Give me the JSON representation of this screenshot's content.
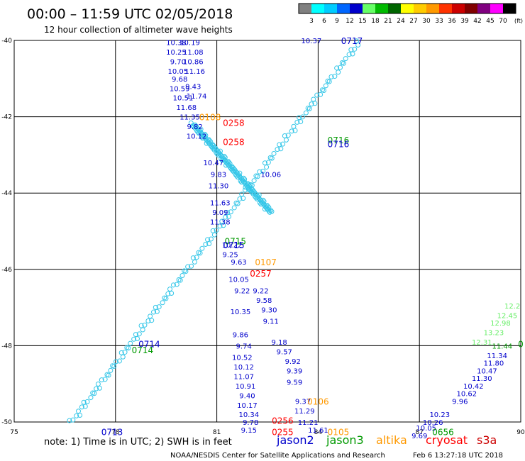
{
  "header": {
    "title": "00:00 – 11:59 UTC 02/05/2018",
    "subtitle": "12 hour collection of altimeter wave heights"
  },
  "colorbar": {
    "labels": [
      "3",
      "6",
      "9",
      "12",
      "15",
      "18",
      "21",
      "24",
      "27",
      "30",
      "33",
      "36",
      "39",
      "42",
      "45",
      "70"
    ],
    "unit": "(ft)",
    "colors": [
      "#808080",
      "#00ffff",
      "#00ccff",
      "#0066ff",
      "#0000cc",
      "#66ff66",
      "#00bb00",
      "#006600",
      "#ffff00",
      "#ffcc00",
      "#ff9900",
      "#ff3300",
      "#cc0000",
      "#800000",
      "#800080",
      "#ff00ff",
      "#000000"
    ]
  },
  "footer": {
    "note": "note:  1) Time is in UTC; 2) SWH is in feet",
    "satellites": [
      {
        "name": "jason2",
        "color": "#0000cc"
      },
      {
        "name": "jason3",
        "color": "#009900"
      },
      {
        "name": "altika",
        "color": "#ff9900"
      },
      {
        "name": "cryosat",
        "color": "#ff0000"
      },
      {
        "name": "s3a",
        "color": "#cc0000"
      }
    ],
    "credit": "NOAA/NESDIS Center for Satellite Applications and Research",
    "timestamp": "Feb  6 13:27:18 UTC 2018"
  },
  "chart_data": {
    "type": "scatter",
    "xlim": [
      75,
      90
    ],
    "ylim": [
      -50,
      -40
    ],
    "x_ticks": [
      75,
      78,
      81,
      84,
      87,
      90
    ],
    "y_ticks": [
      -40,
      -42,
      -44,
      -46,
      -48,
      -50
    ],
    "grid": true,
    "series": [
      {
        "name": "jason2",
        "color": "#0000cc",
        "points": [
          {
            "x": 83.8,
            "y": -40.0,
            "label": "10.37"
          },
          {
            "x": 79.8,
            "y": -40.05,
            "label": "10.38"
          },
          {
            "x": 80.2,
            "y": -40.05,
            "label": "10.19"
          },
          {
            "x": 79.8,
            "y": -40.3,
            "label": "10.25"
          },
          {
            "x": 80.3,
            "y": -40.3,
            "label": "11.08"
          },
          {
            "x": 79.85,
            "y": -40.55,
            "label": "9.70"
          },
          {
            "x": 80.3,
            "y": -40.55,
            "label": "10.86"
          },
          {
            "x": 79.85,
            "y": -40.8,
            "label": "10.05"
          },
          {
            "x": 80.35,
            "y": -40.8,
            "label": "11.16"
          },
          {
            "x": 79.9,
            "y": -41.0,
            "label": "9.68"
          },
          {
            "x": 80.3,
            "y": -41.2,
            "label": "9.43"
          },
          {
            "x": 79.9,
            "y": -41.25,
            "label": "10.59"
          },
          {
            "x": 80.4,
            "y": -41.45,
            "label": "11.74"
          },
          {
            "x": 80.0,
            "y": -41.5,
            "label": "10.51"
          },
          {
            "x": 80.1,
            "y": -41.75,
            "label": "11.68"
          },
          {
            "x": 80.2,
            "y": -42.0,
            "label": "11.35"
          },
          {
            "x": 80.35,
            "y": -42.25,
            "label": "9.82"
          },
          {
            "x": 80.4,
            "y": -42.5,
            "label": "10.12"
          },
          {
            "x": 80.9,
            "y": -43.2,
            "label": "10.47"
          },
          {
            "x": 81.05,
            "y": -43.5,
            "label": "9.83"
          },
          {
            "x": 82.6,
            "y": -43.5,
            "label": "10.06"
          },
          {
            "x": 81.05,
            "y": -43.8,
            "label": "11.30"
          },
          {
            "x": 81.1,
            "y": -44.25,
            "label": "11.63"
          },
          {
            "x": 81.1,
            "y": -44.5,
            "label": "9.09"
          },
          {
            "x": 81.1,
            "y": -44.75,
            "label": "11.38"
          },
          {
            "x": 81.45,
            "y": -45.35,
            "label": "10.22"
          },
          {
            "x": 81.4,
            "y": -45.6,
            "label": "9.25"
          },
          {
            "x": 81.65,
            "y": -45.8,
            "label": "9.63"
          },
          {
            "x": 81.65,
            "y": -46.25,
            "label": "10.05"
          },
          {
            "x": 81.75,
            "y": -46.55,
            "label": "9.22"
          },
          {
            "x": 82.3,
            "y": -46.55,
            "label": "9.22"
          },
          {
            "x": 82.4,
            "y": -46.8,
            "label": "9.58"
          },
          {
            "x": 82.55,
            "y": -47.05,
            "label": "9.30"
          },
          {
            "x": 81.7,
            "y": -47.1,
            "label": "10.35"
          },
          {
            "x": 82.6,
            "y": -47.35,
            "label": "9.11"
          },
          {
            "x": 81.7,
            "y": -47.7,
            "label": "9.86"
          },
          {
            "x": 82.85,
            "y": -47.9,
            "label": "9.18"
          },
          {
            "x": 81.8,
            "y": -48.0,
            "label": "9.74"
          },
          {
            "x": 83.0,
            "y": -48.15,
            "label": "9.57"
          },
          {
            "x": 81.75,
            "y": -48.3,
            "label": "10.52"
          },
          {
            "x": 83.25,
            "y": -48.4,
            "label": "9.92"
          },
          {
            "x": 81.8,
            "y": -48.55,
            "label": "10.12"
          },
          {
            "x": 83.3,
            "y": -48.65,
            "label": "9.39"
          },
          {
            "x": 81.8,
            "y": -48.8,
            "label": "11.07"
          },
          {
            "x": 83.3,
            "y": -48.95,
            "label": "9.59"
          },
          {
            "x": 81.85,
            "y": -49.05,
            "label": "10.91"
          },
          {
            "x": 81.9,
            "y": -49.3,
            "label": "9.40"
          },
          {
            "x": 83.55,
            "y": -49.45,
            "label": "9.37"
          },
          {
            "x": 81.9,
            "y": -49.55,
            "label": "10.17"
          },
          {
            "x": 83.6,
            "y": -49.7,
            "label": "11.29"
          },
          {
            "x": 81.95,
            "y": -49.8,
            "label": "10.34"
          },
          {
            "x": 82.0,
            "y": -50.0,
            "label": "9.78"
          },
          {
            "x": 83.7,
            "y": -50.0,
            "label": "11.21"
          },
          {
            "x": 81.95,
            "y": -50.2,
            "label": "9.15"
          },
          {
            "x": 84.0,
            "y": -50.2,
            "label": "11.61"
          },
          {
            "x": 89.3,
            "y": -48.25,
            "label": "11.34"
          },
          {
            "x": 89.2,
            "y": -48.45,
            "label": "11.80"
          },
          {
            "x": 89.0,
            "y": -48.65,
            "label": "10.47"
          },
          {
            "x": 88.85,
            "y": -48.85,
            "label": "11.30"
          },
          {
            "x": 88.6,
            "y": -49.05,
            "label": "10.42"
          },
          {
            "x": 88.4,
            "y": -49.25,
            "label": "10.62"
          },
          {
            "x": 88.2,
            "y": -49.45,
            "label": "9.96"
          },
          {
            "x": 87.6,
            "y": -49.8,
            "label": "10.23"
          },
          {
            "x": 87.4,
            "y": -50.0,
            "label": "10.26"
          },
          {
            "x": 87.2,
            "y": -50.15,
            "label": "10.05"
          },
          {
            "x": 87.0,
            "y": -50.35,
            "label": "9.69"
          }
        ]
      },
      {
        "name": "jason3",
        "color": "#009900",
        "points": [
          {
            "x": 89.45,
            "y": -48.0,
            "label": "11.44"
          }
        ]
      },
      {
        "name": "jason3-light",
        "color": "#66ee66",
        "points": [
          {
            "x": 88.85,
            "y": -47.9,
            "label": "12.31"
          },
          {
            "x": 89.2,
            "y": -47.65,
            "label": "13.23"
          },
          {
            "x": 89.4,
            "y": -47.4,
            "label": "12.98"
          },
          {
            "x": 89.6,
            "y": -47.2,
            "label": "12.45"
          },
          {
            "x": 89.75,
            "y": -46.95,
            "label": "12.2"
          }
        ]
      }
    ],
    "pass_labels": [
      {
        "text": "0717",
        "x": 85.0,
        "y": -40.0,
        "color": "#0000cc"
      },
      {
        "text": "0108",
        "x": 80.8,
        "y": -42.0,
        "color": "#ff9900"
      },
      {
        "text": "0258",
        "x": 81.5,
        "y": -42.15,
        "color": "#ff0000"
      },
      {
        "text": "0258",
        "x": 81.5,
        "y": -42.65,
        "color": "#ff0000"
      },
      {
        "text": "0716",
        "x": 84.6,
        "y": -42.6,
        "color": "#009900"
      },
      {
        "text": "0716",
        "x": 84.6,
        "y": -42.7,
        "color": "#0000cc"
      },
      {
        "text": "0715",
        "x": 81.55,
        "y": -45.25,
        "color": "#009900"
      },
      {
        "text": "0715",
        "x": 81.5,
        "y": -45.35,
        "color": "#0000cc"
      },
      {
        "text": "0107",
        "x": 82.45,
        "y": -45.8,
        "color": "#ff9900"
      },
      {
        "text": "0257",
        "x": 82.3,
        "y": -46.1,
        "color": "#ff0000"
      },
      {
        "text": "0714",
        "x": 79.0,
        "y": -47.95,
        "color": "#0000cc"
      },
      {
        "text": "0714",
        "x": 78.8,
        "y": -48.1,
        "color": "#009900"
      },
      {
        "text": "0106",
        "x": 84.0,
        "y": -49.45,
        "color": "#ff9900"
      },
      {
        "text": "0256",
        "x": 82.95,
        "y": -49.95,
        "color": "#ff0000"
      },
      {
        "text": "0255",
        "x": 82.95,
        "y": -50.25,
        "color": "#ff0000"
      },
      {
        "text": "0105",
        "x": 84.6,
        "y": -50.25,
        "color": "#ff9900"
      },
      {
        "text": "0713",
        "x": 77.9,
        "y": -50.25,
        "color": "#0000cc"
      },
      {
        "text": "0656",
        "x": 87.7,
        "y": -50.25,
        "color": "#009900"
      },
      {
        "text": "0",
        "x": 90.0,
        "y": -47.95,
        "color": "#009900"
      }
    ]
  }
}
